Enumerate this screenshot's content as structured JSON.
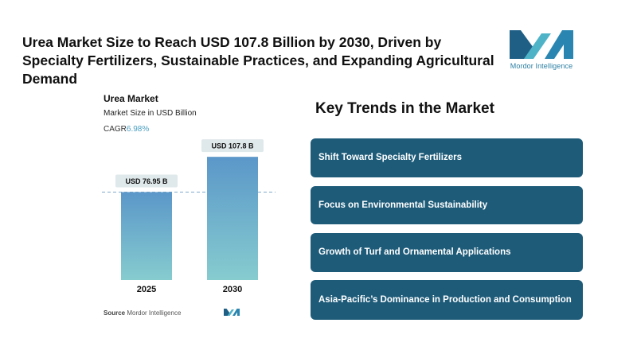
{
  "header": {
    "title": "Urea Market Size to Reach USD 107.8 Billion by 2030, Driven by Specialty Fertilizers, Sustainable Practices, and Expanding Agricultural Demand",
    "logo_text": "Mordor Intelligence"
  },
  "chart_panel": {
    "title": "Urea Market",
    "subtitle": "Market Size in USD Billion",
    "cagr_label": "CAGR",
    "cagr_value": "6.98%",
    "source_label": "Source",
    "source_value": "Mordor Intelligence"
  },
  "chart_data": {
    "type": "bar",
    "title": "Urea Market",
    "ylabel": "Market Size in USD Billion",
    "categories": [
      "2025",
      "2030"
    ],
    "values": [
      76.95,
      107.8
    ],
    "value_labels": [
      "USD 76.95 B",
      "USD 107.8 B"
    ],
    "ylim": [
      0,
      110
    ],
    "reference_line": "dashed line at 2025 value",
    "grid": false,
    "colors": {
      "bar_top": "#5b97c9",
      "bar_bottom": "#86cccf",
      "label_bg": "#dfe8ea",
      "dash": "#7fa9c9"
    }
  },
  "trends": {
    "title": "Key Trends in the Market",
    "items": [
      "Shift Toward Specialty Fertilizers",
      "Focus on Environmental Sustainability",
      "Growth of Turf and Ornamental Applications",
      "Asia-Pacific’s Dominance in Production and Consumption"
    ],
    "box_color": "#1d5b79"
  }
}
